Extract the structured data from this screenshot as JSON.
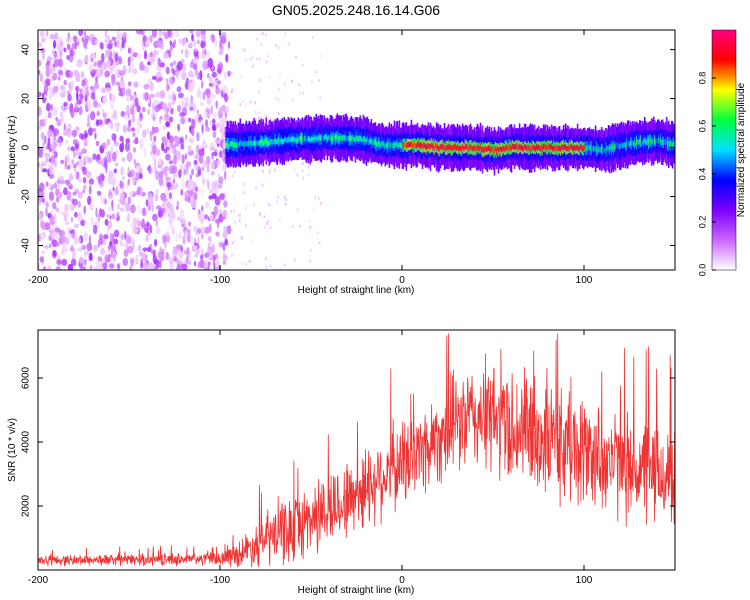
{
  "figure": {
    "title": "GN05.2025.248.16.14.G06"
  },
  "chart_data": [
    {
      "type": "heatmap",
      "title": "GN05.2025.248.16.14.G06",
      "xlabel": "Height of straight line (km)",
      "ylabel": "Frequency (Hz)",
      "xlim": [
        -200,
        150
      ],
      "ylim": [
        -50,
        48
      ],
      "xticks": [
        -200,
        -100,
        0,
        100
      ],
      "yticks": [
        -40,
        -20,
        0,
        20,
        40
      ],
      "colorbar": {
        "label": "Normalized spectral amplitude",
        "range": [
          0.0,
          1.0
        ],
        "ticks": [
          0.0,
          0.2,
          0.4,
          0.6,
          0.8
        ],
        "tick_labels": [
          "0.0",
          "0.2",
          "0.4",
          "0.6",
          "0.8"
        ],
        "colors": [
          "#ffffff",
          "#cc66ff",
          "#7a00ff",
          "#0000ff",
          "#00e0ff",
          "#00ff40",
          "#ffff00",
          "#ff0000",
          "#ff0080"
        ]
      },
      "noise_region_x_range": [
        -200,
        -95
      ],
      "signal_track": {
        "x": [
          -97,
          -80,
          -60,
          -40,
          -30,
          -20,
          -10,
          0,
          10,
          20,
          40,
          50,
          60,
          70,
          80,
          100,
          110,
          120,
          130,
          140,
          150
        ],
        "frequency": [
          1,
          2,
          3,
          4,
          4,
          3,
          1,
          1,
          1,
          0,
          0,
          -1,
          0,
          0,
          0,
          0,
          -1,
          1,
          2,
          3,
          1
        ],
        "peak_amplitude_x_range": [
          0,
          100
        ]
      }
    },
    {
      "type": "line",
      "xlabel": "Height of straight line (km)",
      "ylabel": "SNR (10 * v/v)",
      "xlim": [
        -200,
        150
      ],
      "ylim": [
        0,
        7500
      ],
      "xticks": [
        -200,
        -100,
        0,
        100
      ],
      "yticks": [
        2000,
        4000,
        6000
      ],
      "series": [
        {
          "name": "SNR",
          "color": "#ee3333",
          "envelope_x": [
            -200,
            -150,
            -100,
            -90,
            -80,
            -70,
            -60,
            -50,
            -40,
            -30,
            -20,
            -10,
            0,
            10,
            20,
            30,
            40,
            50,
            60,
            70,
            80,
            90,
            100,
            110,
            120,
            130,
            140,
            150
          ],
          "envelope_mean": [
            300,
            320,
            350,
            500,
            800,
            1100,
            1300,
            1600,
            1900,
            2200,
            2600,
            3000,
            3300,
            3700,
            4200,
            4600,
            4800,
            4700,
            4500,
            4300,
            4100,
            3900,
            3700,
            3500,
            3300,
            3100,
            3000,
            2900
          ],
          "envelope_spread": [
            200,
            220,
            250,
            500,
            900,
            1200,
            1300,
            1400,
            1500,
            1500,
            1600,
            1600,
            1700,
            1700,
            1800,
            1900,
            2000,
            2200,
            2300,
            2400,
            2300,
            2200,
            2100,
            2100,
            2000,
            2000,
            2000,
            2000
          ],
          "max_value": 7400
        }
      ]
    }
  ]
}
